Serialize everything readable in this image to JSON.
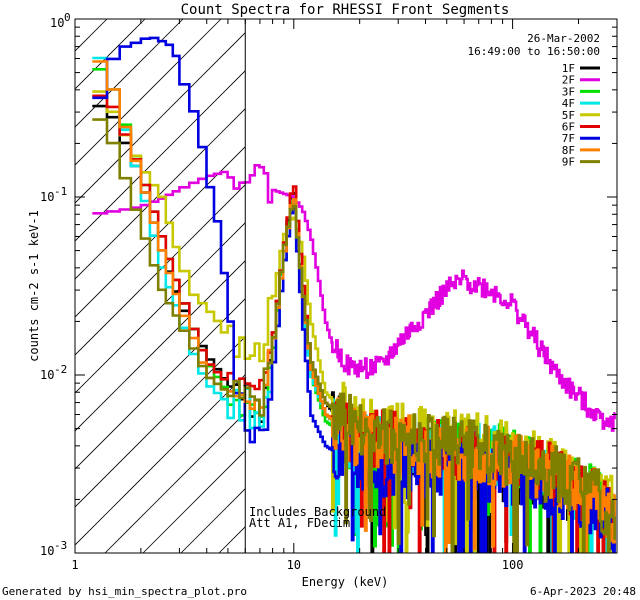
{
  "chart_data": {
    "type": "line",
    "title": "Count Spectra for RHESSI Front Segments",
    "xlabel": "Energy (keV)",
    "ylabel": "counts cm-2 s-1 keV-1",
    "xscale": "log",
    "yscale": "log",
    "xlim": [
      1,
      300
    ],
    "ylim": [
      0.001,
      1
    ],
    "x_tick_labels": [
      {
        "value": 1,
        "label": "1"
      },
      {
        "value": 10,
        "label": "10"
      },
      {
        "value": 100,
        "label": "100"
      }
    ],
    "y_tick_labels": [
      {
        "value": 1,
        "mantissa": "10",
        "exp": "0"
      },
      {
        "value": 0.1,
        "mantissa": "10",
        "exp": "-1"
      },
      {
        "value": 0.01,
        "mantissa": "10",
        "exp": "-2"
      },
      {
        "value": 0.001,
        "mantissa": "10",
        "exp": "-3"
      }
    ],
    "annotations": {
      "date": "26-Mar-2002",
      "time_range": "16:49:00 to 16:50:00",
      "note_line1": "Includes Background",
      "note_line2": "Att A1, FDecim",
      "shaded_region_kev": [
        1,
        6
      ]
    },
    "series": [
      {
        "name": "1F",
        "color": "#000000",
        "noise_seed": 11,
        "points": [
          [
            1.2,
            0.35
          ],
          [
            1.5,
            0.28
          ],
          [
            2.0,
            0.13
          ],
          [
            2.5,
            0.05
          ],
          [
            3.0,
            0.026
          ],
          [
            3.5,
            0.018
          ],
          [
            4.0,
            0.013
          ],
          [
            5.0,
            0.009
          ],
          [
            6.0,
            0.008
          ],
          [
            7.0,
            0.006
          ],
          [
            8.0,
            0.015
          ],
          [
            9.0,
            0.05
          ],
          [
            10.0,
            0.12
          ],
          [
            11.0,
            0.03
          ],
          [
            12.0,
            0.012
          ],
          [
            14.0,
            0.007
          ],
          [
            20.0,
            0.004
          ],
          [
            40.0,
            0.0035
          ],
          [
            80.0,
            0.003
          ],
          [
            150.0,
            0.0025
          ],
          [
            250.0,
            0.0018
          ],
          [
            290.0,
            0.0015
          ]
        ]
      },
      {
        "name": "2F",
        "color": "#e000e0",
        "noise_seed": 22,
        "points": [
          [
            1.2,
            0.08
          ],
          [
            1.5,
            0.083
          ],
          [
            2.0,
            0.088
          ],
          [
            2.5,
            0.098
          ],
          [
            3.0,
            0.11
          ],
          [
            4.0,
            0.13
          ],
          [
            5.0,
            0.14
          ],
          [
            6.0,
            0.14
          ],
          [
            7.0,
            0.13
          ],
          [
            8.0,
            0.11
          ],
          [
            10.0,
            0.1
          ],
          [
            11.0,
            0.085
          ],
          [
            12.0,
            0.06
          ],
          [
            13.0,
            0.035
          ],
          [
            14.0,
            0.02
          ],
          [
            15.0,
            0.015
          ],
          [
            18.0,
            0.011
          ],
          [
            25.0,
            0.011
          ],
          [
            30.0,
            0.015
          ],
          [
            40.0,
            0.022
          ],
          [
            50.0,
            0.03
          ],
          [
            60.0,
            0.034
          ],
          [
            70.0,
            0.032
          ],
          [
            80.0,
            0.03
          ],
          [
            100.0,
            0.025
          ],
          [
            130.0,
            0.015
          ],
          [
            160.0,
            0.01
          ],
          [
            200.0,
            0.0075
          ],
          [
            250.0,
            0.0058
          ],
          [
            290.0,
            0.0055
          ]
        ]
      },
      {
        "name": "3F",
        "color": "#00e000",
        "noise_seed": 33,
        "points": [
          [
            1.2,
            0.6
          ],
          [
            1.5,
            0.4
          ],
          [
            2.0,
            0.14
          ],
          [
            2.5,
            0.06
          ],
          [
            3.0,
            0.03
          ],
          [
            3.5,
            0.018
          ],
          [
            4.0,
            0.012
          ],
          [
            5.0,
            0.008
          ],
          [
            6.0,
            0.007
          ],
          [
            7.0,
            0.005
          ],
          [
            8.0,
            0.012
          ],
          [
            9.0,
            0.05
          ],
          [
            10.0,
            0.11
          ],
          [
            11.0,
            0.03
          ],
          [
            12.0,
            0.01
          ],
          [
            14.0,
            0.0055
          ],
          [
            20.0,
            0.004
          ],
          [
            40.0,
            0.0042
          ],
          [
            80.0,
            0.0038
          ],
          [
            150.0,
            0.003
          ],
          [
            250.0,
            0.002
          ],
          [
            290.0,
            0.0016
          ]
        ]
      },
      {
        "name": "4F",
        "color": "#00e8e8",
        "noise_seed": 44,
        "points": [
          [
            1.2,
            0.75
          ],
          [
            1.5,
            0.4
          ],
          [
            2.0,
            0.12
          ],
          [
            2.5,
            0.04
          ],
          [
            3.0,
            0.022
          ],
          [
            3.5,
            0.013
          ],
          [
            4.0,
            0.009
          ],
          [
            5.0,
            0.007
          ],
          [
            6.0,
            0.007
          ],
          [
            7.0,
            0.005
          ],
          [
            8.0,
            0.01
          ],
          [
            9.0,
            0.04
          ],
          [
            10.0,
            0.1
          ],
          [
            11.0,
            0.028
          ],
          [
            12.0,
            0.01
          ],
          [
            14.0,
            0.006
          ],
          [
            20.0,
            0.004
          ],
          [
            40.0,
            0.004
          ],
          [
            80.0,
            0.0036
          ],
          [
            150.0,
            0.0028
          ],
          [
            250.0,
            0.0018
          ],
          [
            290.0,
            0.0015
          ]
        ]
      },
      {
        "name": "5F",
        "color": "#c8c800",
        "noise_seed": 55,
        "points": [
          [
            1.2,
            0.45
          ],
          [
            1.5,
            0.3
          ],
          [
            2.0,
            0.15
          ],
          [
            2.5,
            0.1
          ],
          [
            3.0,
            0.045
          ],
          [
            3.5,
            0.028
          ],
          [
            4.0,
            0.024
          ],
          [
            4.5,
            0.02
          ],
          [
            5.0,
            0.016
          ],
          [
            5.5,
            0.014
          ],
          [
            6.0,
            0.013
          ],
          [
            7.0,
            0.013
          ],
          [
            8.0,
            0.025
          ],
          [
            9.0,
            0.06
          ],
          [
            10.0,
            0.08
          ],
          [
            11.0,
            0.05
          ],
          [
            12.0,
            0.02
          ],
          [
            14.0,
            0.008
          ],
          [
            20.0,
            0.005
          ],
          [
            40.0,
            0.0045
          ],
          [
            80.0,
            0.004
          ],
          [
            150.0,
            0.003
          ],
          [
            250.0,
            0.002
          ],
          [
            290.0,
            0.0018
          ]
        ]
      },
      {
        "name": "6F",
        "color": "#e00000",
        "noise_seed": 66,
        "points": [
          [
            1.2,
            0.4
          ],
          [
            1.5,
            0.32
          ],
          [
            2.0,
            0.14
          ],
          [
            2.5,
            0.06
          ],
          [
            3.0,
            0.03
          ],
          [
            3.5,
            0.018
          ],
          [
            4.0,
            0.012
          ],
          [
            5.0,
            0.009
          ],
          [
            6.0,
            0.008
          ],
          [
            7.0,
            0.007
          ],
          [
            8.0,
            0.015
          ],
          [
            9.0,
            0.05
          ],
          [
            10.0,
            0.13
          ],
          [
            11.0,
            0.035
          ],
          [
            12.0,
            0.011
          ],
          [
            14.0,
            0.006
          ],
          [
            20.0,
            0.0045
          ],
          [
            40.0,
            0.004
          ],
          [
            80.0,
            0.0034
          ],
          [
            150.0,
            0.0028
          ],
          [
            250.0,
            0.002
          ],
          [
            290.0,
            0.0016
          ]
        ]
      },
      {
        "name": "7F",
        "color": "#0000e0",
        "noise_seed": 77,
        "points": [
          [
            1.2,
            0.38
          ],
          [
            1.3,
            0.36
          ],
          [
            1.4,
            0.5
          ],
          [
            1.5,
            0.6
          ],
          [
            1.6,
            0.68
          ],
          [
            1.8,
            0.72
          ],
          [
            2.0,
            0.75
          ],
          [
            2.2,
            0.8
          ],
          [
            2.5,
            0.75
          ],
          [
            2.8,
            0.7
          ],
          [
            3.0,
            0.55
          ],
          [
            3.3,
            0.35
          ],
          [
            3.6,
            0.28
          ],
          [
            3.8,
            0.2
          ],
          [
            4.0,
            0.13
          ],
          [
            4.3,
            0.1
          ],
          [
            4.6,
            0.06
          ],
          [
            5.0,
            0.025
          ],
          [
            5.3,
            0.013
          ],
          [
            5.5,
            0.009
          ],
          [
            6.0,
            0.006
          ],
          [
            7.0,
            0.004
          ],
          [
            8.0,
            0.01
          ],
          [
            9.0,
            0.04
          ],
          [
            10.0,
            0.1
          ],
          [
            11.0,
            0.02
          ],
          [
            12.0,
            0.006
          ],
          [
            14.0,
            0.004
          ],
          [
            20.0,
            0.003
          ],
          [
            40.0,
            0.003
          ],
          [
            80.0,
            0.0028
          ],
          [
            150.0,
            0.0023
          ],
          [
            250.0,
            0.0018
          ],
          [
            290.0,
            0.0015
          ]
        ]
      },
      {
        "name": "8F",
        "color": "#ff8000",
        "noise_seed": 88,
        "points": [
          [
            1.2,
            0.7
          ],
          [
            1.5,
            0.4
          ],
          [
            2.0,
            0.13
          ],
          [
            2.5,
            0.05
          ],
          [
            3.0,
            0.025
          ],
          [
            3.5,
            0.016
          ],
          [
            4.0,
            0.01
          ],
          [
            5.0,
            0.008
          ],
          [
            6.0,
            0.007
          ],
          [
            7.0,
            0.006
          ],
          [
            8.0,
            0.014
          ],
          [
            9.0,
            0.045
          ],
          [
            10.0,
            0.11
          ],
          [
            11.0,
            0.03
          ],
          [
            12.0,
            0.011
          ],
          [
            14.0,
            0.006
          ],
          [
            20.0,
            0.0042
          ],
          [
            40.0,
            0.004
          ],
          [
            80.0,
            0.0035
          ],
          [
            150.0,
            0.0028
          ],
          [
            250.0,
            0.002
          ],
          [
            290.0,
            0.0016
          ]
        ]
      },
      {
        "name": "9F",
        "color": "#808000",
        "noise_seed": 99,
        "points": [
          [
            1.2,
            0.32
          ],
          [
            1.5,
            0.2
          ],
          [
            2.0,
            0.07
          ],
          [
            2.5,
            0.03
          ],
          [
            3.0,
            0.02
          ],
          [
            3.5,
            0.014
          ],
          [
            4.0,
            0.01
          ],
          [
            5.0,
            0.008
          ],
          [
            6.0,
            0.007
          ],
          [
            7.0,
            0.006
          ],
          [
            8.0,
            0.014
          ],
          [
            9.0,
            0.05
          ],
          [
            10.0,
            0.1
          ],
          [
            11.0,
            0.03
          ],
          [
            12.0,
            0.012
          ],
          [
            14.0,
            0.007
          ],
          [
            20.0,
            0.0048
          ],
          [
            40.0,
            0.0042
          ],
          [
            80.0,
            0.0036
          ],
          [
            150.0,
            0.0028
          ],
          [
            250.0,
            0.002
          ],
          [
            290.0,
            0.0017
          ]
        ]
      }
    ]
  },
  "footer": {
    "generated_by": "Generated by hsi_min_spectra_plot.pro",
    "timestamp": "6-Apr-2023 20:48"
  }
}
